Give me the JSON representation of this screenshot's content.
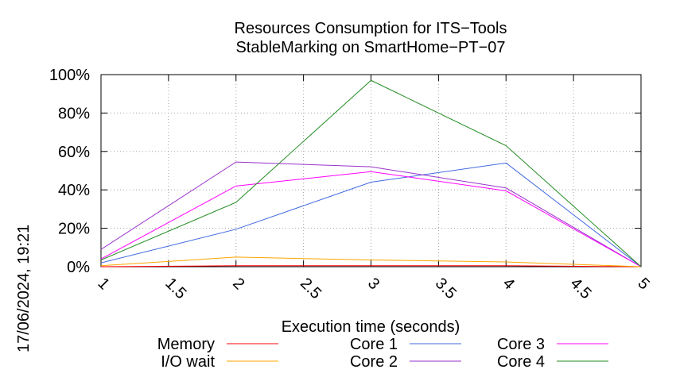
{
  "chart_data": {
    "type": "line",
    "title_line1": "Resources Consumption for ITS−Tools",
    "title_line2": "StableMarking on SmartHome−PT−07",
    "xlabel": "Execution time (seconds)",
    "ylabel": "",
    "timestamp": "17/06/2024, 19:21",
    "x_ticks": [
      "1",
      "1.5",
      "2",
      "2.5",
      "3",
      "3.5",
      "4",
      "4.5",
      "5"
    ],
    "y_ticks": [
      "0%",
      "20%",
      "40%",
      "60%",
      "80%",
      "100%"
    ],
    "xlim": [
      1,
      5
    ],
    "ylim": [
      0,
      100
    ],
    "grid": true,
    "legend_position": "bottom",
    "x": [
      1,
      2,
      3,
      4,
      5
    ],
    "series": [
      {
        "name": "Memory",
        "color": "#ff0000",
        "values": [
          0,
          0.5,
          0.5,
          0.5,
          0
        ]
      },
      {
        "name": "I/O wait",
        "color": "#ffa500",
        "values": [
          0.5,
          5,
          3.5,
          2.5,
          0
        ]
      },
      {
        "name": "Core 1",
        "color": "#4169e1",
        "values": [
          2,
          19.5,
          44,
          54,
          0
        ]
      },
      {
        "name": "Core 2",
        "color": "#9932cc",
        "values": [
          9,
          54.5,
          52,
          41,
          0
        ]
      },
      {
        "name": "Core 3",
        "color": "#ff00ff",
        "values": [
          4,
          42,
          49.5,
          39.5,
          0
        ]
      },
      {
        "name": "Core 4",
        "color": "#228b22",
        "values": [
          3.5,
          33.5,
          97,
          63,
          0
        ]
      }
    ]
  }
}
